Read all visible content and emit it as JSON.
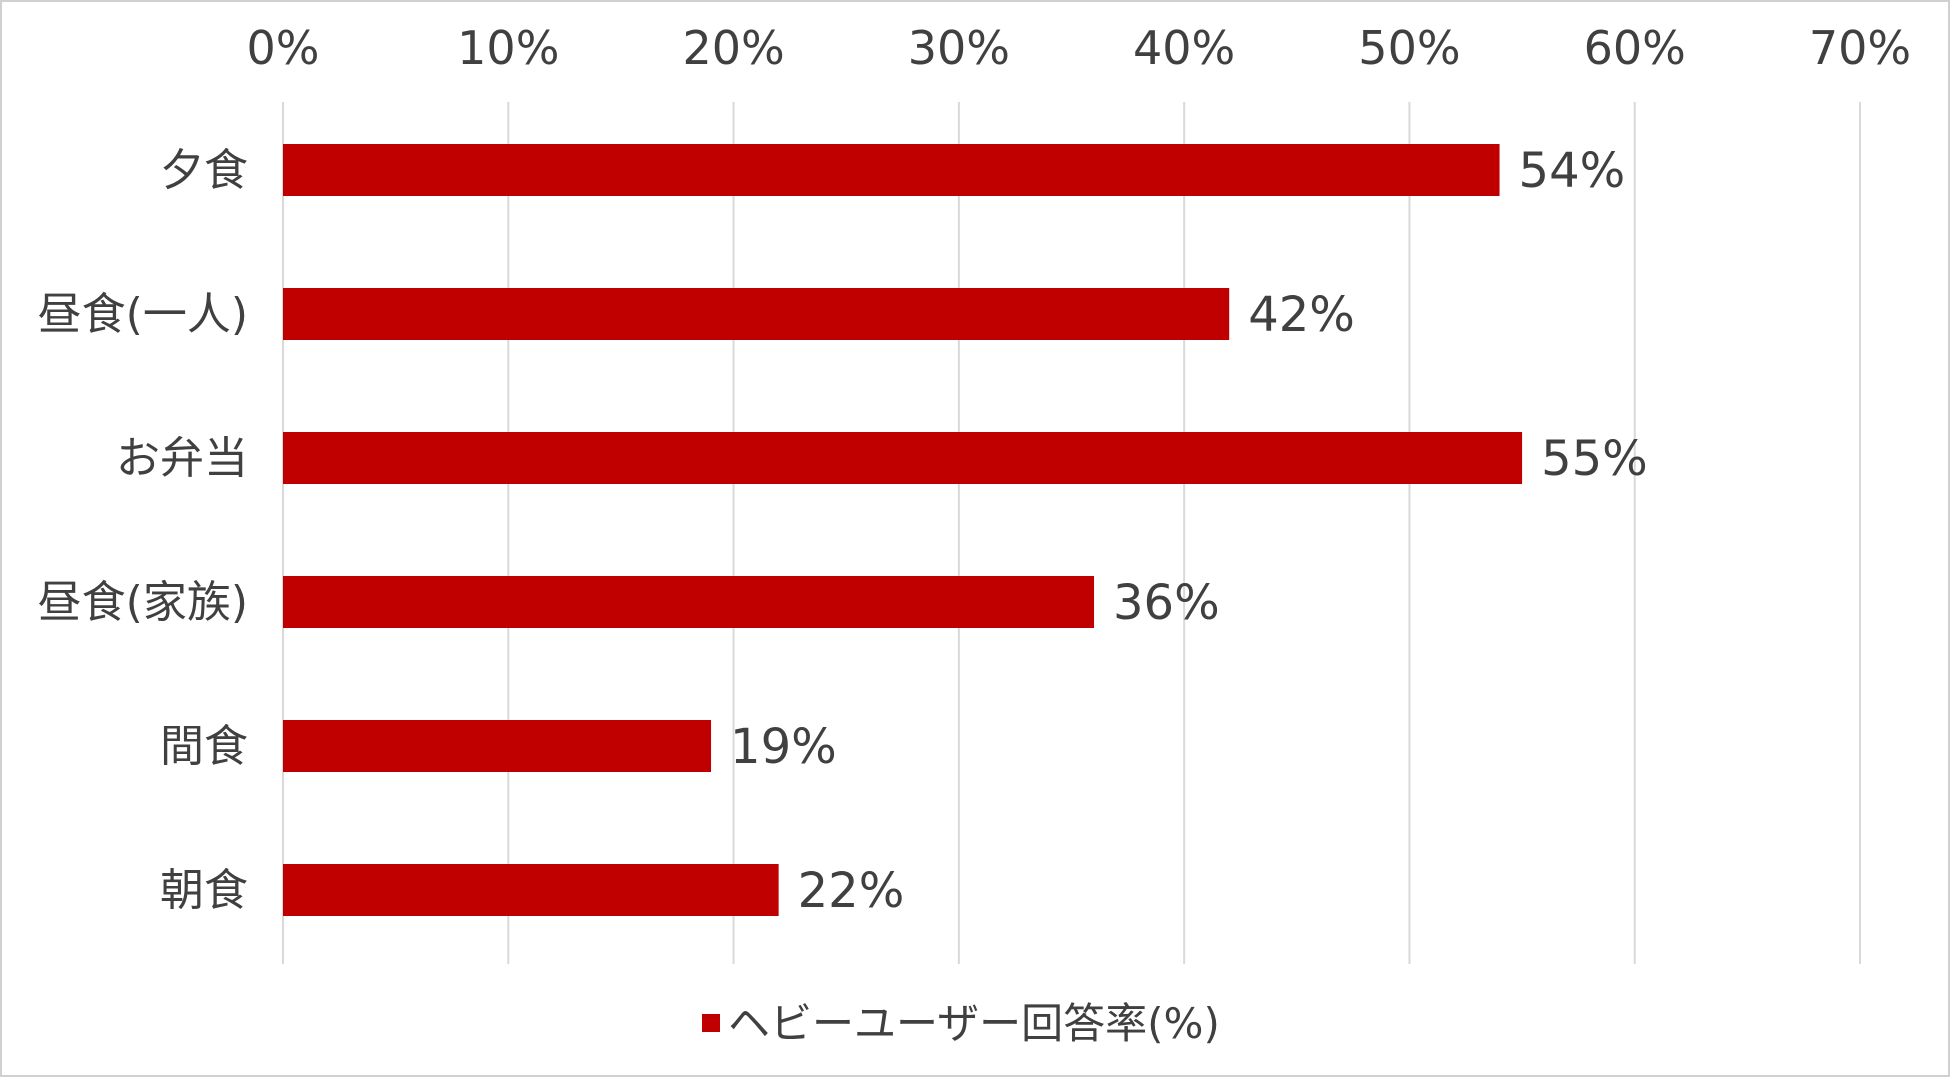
{
  "chart_data": {
    "type": "bar",
    "orientation": "horizontal",
    "title": "",
    "xlabel": "",
    "ylabel": "",
    "categories": [
      "夕食",
      "昼食(一人)",
      "お弁当",
      "昼食(家族)",
      "間食",
      "朝食"
    ],
    "series": [
      {
        "name": "ヘビーユーザー回答率(%)",
        "values": [
          54,
          42,
          55,
          36,
          19,
          22
        ],
        "labels": [
          "54%",
          "42%",
          "55%",
          "36%",
          "19%",
          "22%"
        ],
        "color": "#c00000"
      }
    ],
    "xlim": [
      0,
      70
    ],
    "x_ticks": [
      0,
      10,
      20,
      30,
      40,
      50,
      60,
      70
    ],
    "x_tick_labels": [
      "0%",
      "10%",
      "20%",
      "30%",
      "40%",
      "50%",
      "60%",
      "70%"
    ],
    "x_axis_position": "top",
    "grid": true,
    "legend_position": "bottom"
  }
}
